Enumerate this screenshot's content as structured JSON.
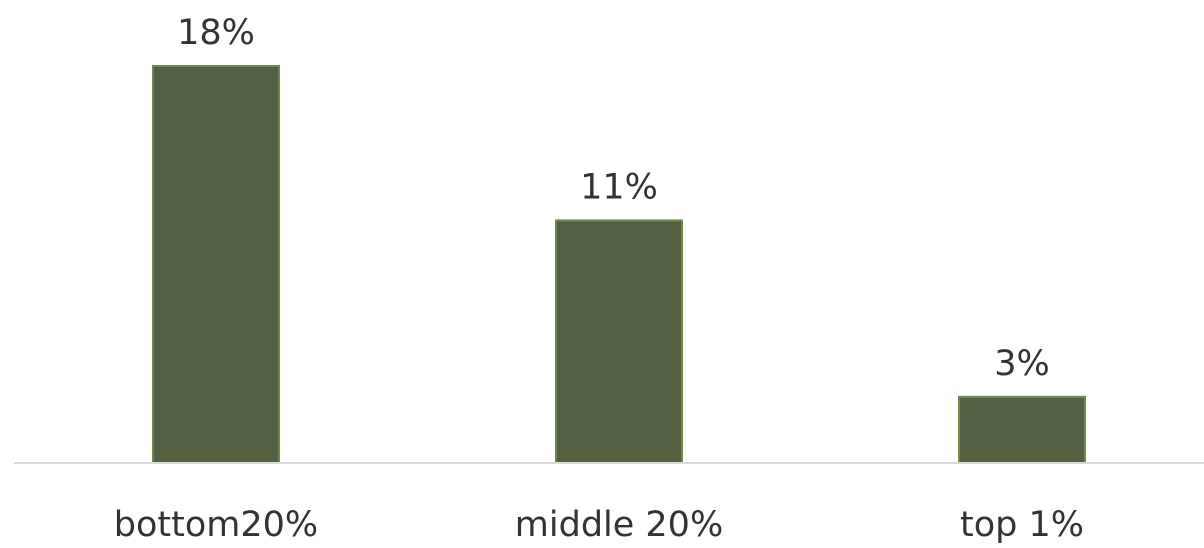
{
  "chart_data": {
    "type": "bar",
    "categories": [
      "bottom20%",
      "middle 20%",
      "top 1%"
    ],
    "values": [
      18,
      11,
      3
    ],
    "data_labels": [
      "18%",
      "11%",
      "3%"
    ],
    "ylim": [
      0,
      18
    ],
    "grid": false,
    "legend": "none",
    "colors": {
      "bar_fill": "#536142",
      "bar_stroke": "#70894a",
      "axis_line": "#d9d9d9",
      "text": "#333333"
    }
  }
}
